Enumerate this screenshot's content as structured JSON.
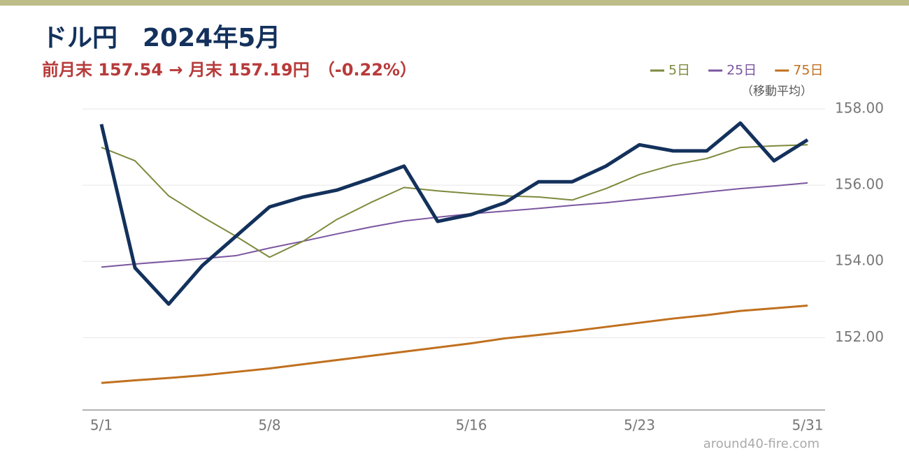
{
  "chart_data": {
    "type": "line",
    "title": "ドル円　2024年5月",
    "subtitle": "前月末 157.54 → 月末 157.19円　（-0.22%）",
    "legend_note": "（移動平均）",
    "watermark": "around40-fire.com",
    "categories": [
      "5/1",
      null,
      null,
      null,
      null,
      "5/8",
      null,
      null,
      null,
      null,
      null,
      "5/16",
      null,
      null,
      null,
      null,
      "5/23",
      null,
      null,
      null,
      null,
      "5/31"
    ],
    "series": [
      {
        "name": null,
        "color": "#13315c",
        "width": 5,
        "values": [
          157.6,
          153.83,
          152.88,
          153.89,
          154.66,
          155.43,
          155.69,
          155.87,
          156.17,
          156.5,
          155.05,
          155.23,
          155.54,
          156.09,
          156.09,
          156.5,
          157.06,
          156.9,
          156.9,
          157.63,
          156.64,
          157.19
        ]
      },
      {
        "name": "5日",
        "color": "#7d8a3c",
        "width": 2,
        "values": [
          156.99,
          156.64,
          155.72,
          155.17,
          154.66,
          154.11,
          154.53,
          155.1,
          155.54,
          155.94,
          155.85,
          155.78,
          155.72,
          155.69,
          155.61,
          155.91,
          156.28,
          156.53,
          156.7,
          156.99,
          157.03,
          157.06
        ]
      },
      {
        "name": "25日",
        "color": "#7b56a0",
        "width": 2,
        "values": [
          153.85,
          153.93,
          154.0,
          154.07,
          154.15,
          154.35,
          154.53,
          154.72,
          154.9,
          155.06,
          155.16,
          155.25,
          155.32,
          155.39,
          155.47,
          155.54,
          155.63,
          155.72,
          155.82,
          155.91,
          155.98,
          156.06
        ]
      },
      {
        "name": "75日",
        "color": "#c0701f",
        "width": 3,
        "values": [
          150.81,
          150.88,
          150.94,
          151.01,
          151.1,
          151.19,
          151.3,
          151.41,
          151.52,
          151.63,
          151.74,
          151.85,
          151.98,
          152.07,
          152.17,
          152.28,
          152.39,
          152.5,
          152.59,
          152.7,
          152.77,
          152.84
        ]
      }
    ],
    "ylim": [
      150.1,
      158
    ],
    "yticks": [
      {
        "value": 152,
        "label": "152.00"
      },
      {
        "value": 154,
        "label": "154.00"
      },
      {
        "value": 156,
        "label": "156.00"
      },
      {
        "value": 158,
        "label": "158.00"
      }
    ],
    "grid": true
  }
}
